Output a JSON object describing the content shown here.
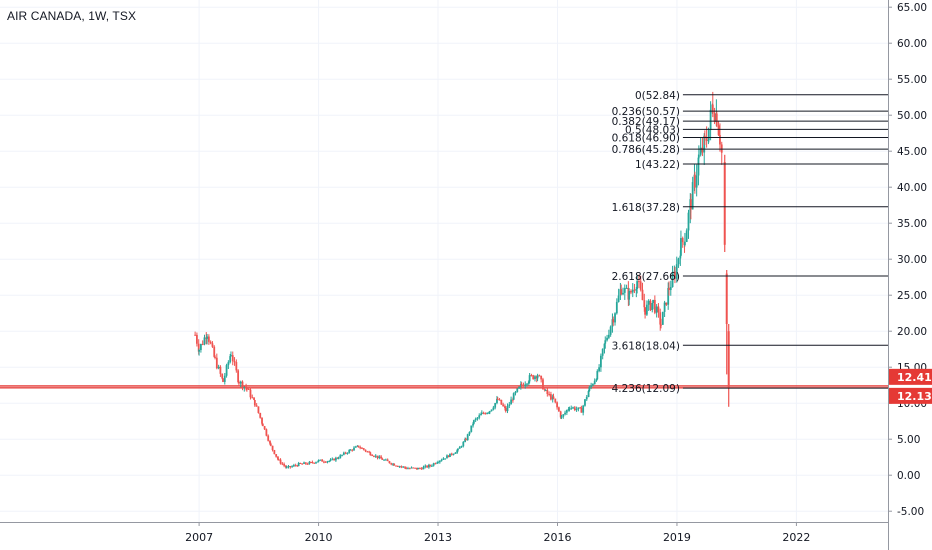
{
  "chart_data": {
    "type": "candlestick",
    "title": "AIR CANADA, 1W, TSX",
    "y_axis": {
      "side": "right",
      "range": [
        -6.5,
        66
      ],
      "ticks": [
        "65.00",
        "60.00",
        "55.00",
        "50.00",
        "45.00",
        "40.00",
        "35.00",
        "30.00",
        "25.00",
        "20.00",
        "15.00",
        "10.00",
        "5.00",
        "0.00",
        "-5.00"
      ],
      "tick_values": [
        65,
        60,
        55,
        50,
        45,
        40,
        35,
        30,
        25,
        20,
        15,
        10,
        5,
        0,
        -5
      ]
    },
    "x_axis": {
      "range": [
        2002.0,
        2024.3
      ],
      "ticks": [
        "2007",
        "2010",
        "2013",
        "2016",
        "2019",
        "2022"
      ],
      "tick_values": [
        2007,
        2010,
        2013,
        2016,
        2019,
        2022
      ]
    },
    "grid": true,
    "colors": {
      "up": "#26a69a",
      "down": "#ef5350",
      "hline": "#e53935",
      "fib": "#131722",
      "grid": "#f0f3fa"
    },
    "price_path": [
      [
        2006.9,
        19.5
      ],
      [
        2007.0,
        17.5
      ],
      [
        2007.2,
        19.8
      ],
      [
        2007.4,
        16.0
      ],
      [
        2007.6,
        13.0
      ],
      [
        2007.8,
        17.0
      ],
      [
        2008.0,
        13.0
      ],
      [
        2008.2,
        12.0
      ],
      [
        2008.4,
        10.0
      ],
      [
        2008.6,
        7.0
      ],
      [
        2008.8,
        4.0
      ],
      [
        2009.0,
        2.0
      ],
      [
        2009.2,
        1.0
      ],
      [
        2009.5,
        1.5
      ],
      [
        2009.8,
        1.7
      ],
      [
        2010.0,
        2.0
      ],
      [
        2010.3,
        2.0
      ],
      [
        2010.5,
        2.5
      ],
      [
        2010.8,
        3.5
      ],
      [
        2011.0,
        4.0
      ],
      [
        2011.3,
        3.0
      ],
      [
        2011.6,
        2.2
      ],
      [
        2011.9,
        1.5
      ],
      [
        2012.2,
        1.0
      ],
      [
        2012.5,
        0.9
      ],
      [
        2012.8,
        1.3
      ],
      [
        2013.0,
        2.0
      ],
      [
        2013.3,
        2.8
      ],
      [
        2013.5,
        3.5
      ],
      [
        2013.7,
        5.0
      ],
      [
        2013.9,
        7.5
      ],
      [
        2014.1,
        8.5
      ],
      [
        2014.3,
        9.0
      ],
      [
        2014.5,
        10.5
      ],
      [
        2014.7,
        9.0
      ],
      [
        2014.9,
        11.0
      ],
      [
        2015.1,
        12.5
      ],
      [
        2015.3,
        13.5
      ],
      [
        2015.5,
        14.0
      ],
      [
        2015.7,
        11.5
      ],
      [
        2015.9,
        10.5
      ],
      [
        2016.1,
        8.0
      ],
      [
        2016.3,
        9.5
      ],
      [
        2016.6,
        9.0
      ],
      [
        2016.8,
        12.0
      ],
      [
        2017.0,
        14.0
      ],
      [
        2017.2,
        18.5
      ],
      [
        2017.4,
        22.0
      ],
      [
        2017.6,
        26.0
      ],
      [
        2017.8,
        25.0
      ],
      [
        2018.0,
        27.0
      ],
      [
        2018.2,
        23.0
      ],
      [
        2018.4,
        24.0
      ],
      [
        2018.6,
        21.0
      ],
      [
        2018.8,
        26.0
      ],
      [
        2018.95,
        28.0
      ],
      [
        2019.1,
        32.0
      ],
      [
        2019.2,
        33.0
      ],
      [
        2019.35,
        38.0
      ],
      [
        2019.45,
        41.0
      ],
      [
        2019.55,
        44.0
      ],
      [
        2019.7,
        46.0
      ],
      [
        2019.8,
        48.0
      ],
      [
        2019.9,
        51.5
      ],
      [
        2020.0,
        50.0
      ],
      [
        2020.08,
        47.0
      ],
      [
        2020.15,
        43.5
      ]
    ],
    "crash_candles": [
      {
        "x": 2020.2,
        "open": 43.5,
        "high": 44.5,
        "low": 31.0,
        "close": 32.0
      },
      {
        "x": 2020.25,
        "open": 28.0,
        "high": 28.5,
        "low": 14.0,
        "close": 21.0
      },
      {
        "x": 2020.3,
        "open": 20.0,
        "high": 21.0,
        "low": 9.5,
        "close": 12.13
      }
    ],
    "fibonacci": {
      "x_start": 2019.15,
      "levels": [
        {
          "label": "0(52.84)",
          "value": 52.84
        },
        {
          "label": "0.236(50.57)",
          "value": 50.57
        },
        {
          "label": "0.382(49.17)",
          "value": 49.17
        },
        {
          "label": "0.5(48.03)",
          "value": 48.03
        },
        {
          "label": "0.618(46.90)",
          "value": 46.9
        },
        {
          "label": "0.786(45.28)",
          "value": 45.28
        },
        {
          "label": "1(43.22)",
          "value": 43.22
        },
        {
          "label": "1.618(37.28)",
          "value": 37.28
        },
        {
          "label": "2.618(27.66)",
          "value": 27.66
        },
        {
          "label": "3.618(18.04)",
          "value": 18.04
        },
        {
          "label": "4.236(12.09)",
          "value": 12.09
        }
      ]
    },
    "horizontal_lines": [
      {
        "value": 12.41,
        "label": "12.41",
        "color": "#e53935"
      },
      {
        "value": 12.13,
        "label": "12.13",
        "color": "#e53935"
      }
    ]
  }
}
